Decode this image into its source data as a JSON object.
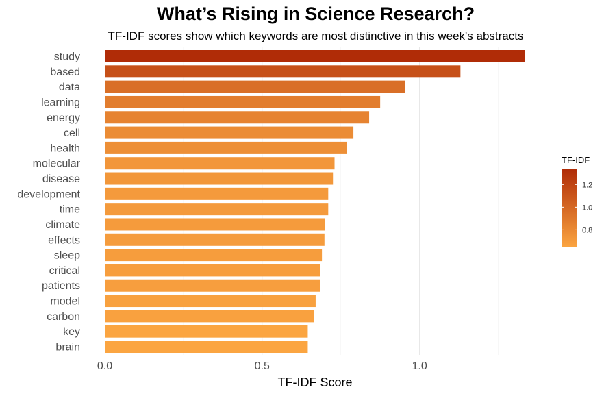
{
  "chart_data": {
    "type": "bar",
    "orientation": "horizontal",
    "title": "What’s Rising in Science Research?",
    "subtitle": "TF-IDF scores show which keywords are most distinctive in this week's abstracts",
    "xlabel": "TF-IDF Score",
    "ylabel": "",
    "xlim": [
      0,
      1.38
    ],
    "xticks": [
      0.0,
      0.5,
      1.0
    ],
    "xtick_labels": [
      "0.0",
      "0.5",
      "1.0"
    ],
    "grid": true,
    "legend": {
      "title": "TF-IDF",
      "placement": "right",
      "ticks": [
        0.8,
        1.0,
        1.2
      ],
      "tick_labels": [
        "0.8",
        "1.0",
        "1.2"
      ],
      "range": [
        0.645,
        1.335
      ],
      "color_low": "#fba541",
      "color_high": "#b02c07"
    },
    "categories": [
      "study",
      "based",
      "data",
      "learning",
      "energy",
      "cell",
      "health",
      "molecular",
      "disease",
      "development",
      "time",
      "climate",
      "effects",
      "sleep",
      "critical",
      "patients",
      "model",
      "carbon",
      "key",
      "brain"
    ],
    "values": [
      1.335,
      1.13,
      0.955,
      0.875,
      0.84,
      0.79,
      0.77,
      0.73,
      0.725,
      0.71,
      0.71,
      0.7,
      0.698,
      0.69,
      0.685,
      0.685,
      0.67,
      0.665,
      0.645,
      0.645
    ]
  }
}
